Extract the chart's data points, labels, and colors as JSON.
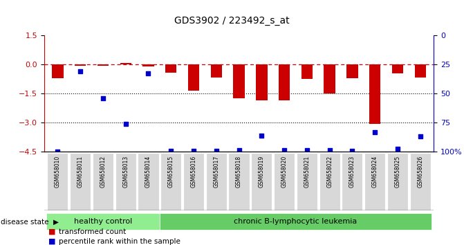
{
  "title": "GDS3902 / 223492_s_at",
  "samples": [
    "GSM658010",
    "GSM658011",
    "GSM658012",
    "GSM658013",
    "GSM658014",
    "GSM658015",
    "GSM658016",
    "GSM658017",
    "GSM658018",
    "GSM658019",
    "GSM658020",
    "GSM658021",
    "GSM658022",
    "GSM658023",
    "GSM658024",
    "GSM658025",
    "GSM658026"
  ],
  "red_bars": [
    -0.7,
    -0.05,
    -0.05,
    0.1,
    -0.08,
    -0.4,
    -1.35,
    -0.65,
    -1.75,
    -1.85,
    -1.85,
    -0.75,
    -1.5,
    -0.7,
    -3.05,
    -0.45,
    -0.65
  ],
  "blue_dots_left": [
    -4.5,
    -0.35,
    -1.75,
    -3.05,
    -0.45,
    -4.45,
    -4.45,
    -4.45,
    -4.4,
    -3.65,
    -4.4,
    -4.4,
    -4.4,
    -4.45,
    -3.5,
    -4.35,
    -3.7
  ],
  "bar_color": "#cc0000",
  "dot_color": "#0000cc",
  "dashed_line_color": "#cc0000",
  "dotted_line_color": "#000000",
  "y_min": -4.5,
  "y_max": 1.5,
  "yticks_left": [
    1.5,
    0,
    -1.5,
    -3,
    -4.5
  ],
  "ytick_labels_right": [
    "100%",
    "75",
    "50",
    "25",
    "0"
  ],
  "healthy_count": 5,
  "disease_label": "chronic B-lymphocytic leukemia",
  "healthy_label": "healthy control",
  "disease_state_label": "disease state",
  "legend1": "transformed count",
  "legend2": "percentile rank within the sample",
  "bg_color": "#ffffff",
  "label_area_color": "#d3d3d3",
  "healthy_green": "#90ee90",
  "disease_green": "#66cc66"
}
